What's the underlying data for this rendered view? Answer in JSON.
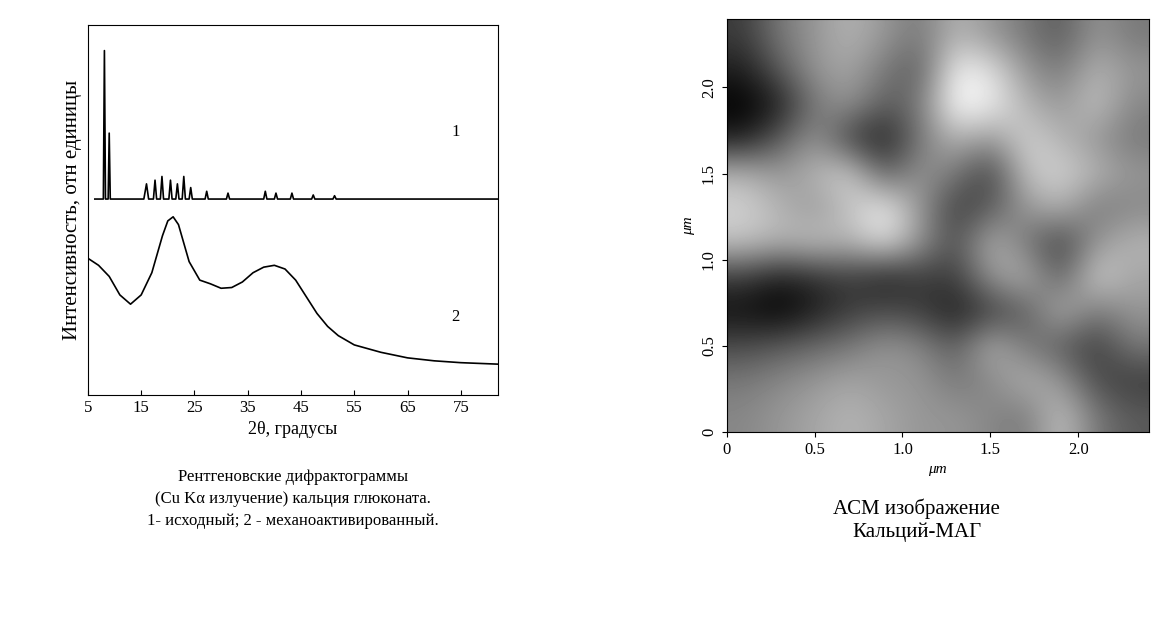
{
  "chart_data": [
    {
      "type": "line",
      "ylabel": "Интенсивность, отн единицы",
      "xlabel": "2θ, градусы",
      "caption": "Рентгеновские дифрактограммы\n(Cu Kα излучение) кальция глюконата.\n1- исходный; 2 - механоактивированный.",
      "xlim": [
        5,
        82
      ],
      "ylim": [
        0,
        100
      ],
      "xticks": [
        5,
        15,
        25,
        35,
        45,
        55,
        65,
        75
      ],
      "yticks": [],
      "tick_labels": "x",
      "series": [
        {
          "name": "1",
          "color": "#000000",
          "x": [
            6.3,
            7.9,
            8.1,
            8.3,
            8.8,
            9.0,
            9.2,
            15.5,
            16,
            16.4,
            17.3,
            17.6,
            17.9,
            18.6,
            18.9,
            19.2,
            20.2,
            20.5,
            20.8,
            21.5,
            21.8,
            22.1,
            22.7,
            23,
            23.3,
            24,
            24.3,
            24.6,
            27,
            27.3,
            27.6,
            31,
            31.3,
            31.6,
            38,
            38.3,
            38.6,
            40,
            40.3,
            40.6,
            43,
            43.3,
            43.6,
            47,
            47.3,
            47.6,
            51,
            51.3,
            51.6,
            82
          ],
          "values": [
            52.9,
            52.9,
            93,
            52.9,
            52.9,
            70.7,
            52.9,
            52.9,
            57,
            52.9,
            52.9,
            58,
            52.9,
            52.9,
            59,
            52.9,
            52.9,
            58,
            52.9,
            52.9,
            57,
            52.9,
            52.9,
            59,
            52.9,
            52.9,
            56,
            52.9,
            52.9,
            55,
            52.9,
            52.9,
            54.5,
            52.9,
            52.9,
            55,
            52.9,
            52.9,
            54.5,
            52.9,
            52.9,
            54.5,
            52.9,
            52.9,
            54,
            52.9,
            52.9,
            53.8,
            52.9,
            52.9
          ]
        },
        {
          "name": "2",
          "color": "#000000",
          "x": [
            5,
            7,
            9,
            11,
            13,
            15,
            17,
            19,
            20,
            21,
            22,
            23,
            24,
            26,
            28,
            30,
            32,
            34,
            36,
            38,
            40,
            42,
            44,
            46,
            48,
            50,
            52,
            55,
            60,
            65,
            70,
            75,
            82
          ],
          "values": [
            36.9,
            35,
            32,
            27,
            24.5,
            27,
            33,
            43,
            47,
            48.1,
            46,
            41,
            36,
            31,
            30,
            28.8,
            29,
            30.5,
            33,
            34.5,
            35,
            34,
            31,
            26.5,
            22,
            18.5,
            16,
            13.5,
            11.5,
            10,
            9.2,
            8.7,
            8.3
          ]
        }
      ],
      "annotations": [
        {
          "text": "1",
          "x": 74,
          "y": 71
        },
        {
          "text": "2",
          "x": 74,
          "y": 21
        }
      ]
    },
    {
      "type": "heatmap",
      "title": "АСМ изображение\nКальций-МАГ",
      "xlabel": "μm",
      "ylabel": "μm",
      "xlim": [
        0,
        2.4
      ],
      "ylim": [
        0,
        2.4
      ],
      "xticks": [
        0,
        0.5,
        {
          "value": 1.0,
          "label": "1.0"
        },
        1.5,
        {
          "value": 2.0,
          "label": "2.0"
        }
      ],
      "yticks": [
        0,
        0.5,
        {
          "value": 1.0,
          "label": "1.0"
        },
        1.5,
        {
          "value": 2.0,
          "label": "2.0"
        }
      ],
      "cells": [
        [
          0.3,
          0.5,
          0.6,
          0.7,
          0.6,
          0.5,
          0.7,
          0.6,
          0.5,
          0.4,
          0.6,
          0.5
        ],
        [
          0.2,
          0.4,
          0.6,
          0.65,
          0.5,
          0.4,
          0.9,
          0.85,
          0.6,
          0.5,
          0.7,
          0.6
        ],
        [
          0.1,
          0.2,
          0.5,
          0.6,
          0.4,
          0.5,
          0.95,
          0.9,
          0.7,
          0.6,
          0.75,
          0.55
        ],
        [
          0.2,
          0.4,
          0.6,
          0.3,
          0.2,
          0.5,
          0.7,
          0.6,
          0.8,
          0.7,
          0.6,
          0.5
        ],
        [
          0.7,
          0.6,
          0.7,
          0.8,
          0.4,
          0.6,
          0.5,
          0.3,
          0.75,
          0.8,
          0.7,
          0.6
        ],
        [
          0.8,
          0.7,
          0.6,
          0.75,
          0.9,
          0.6,
          0.3,
          0.4,
          0.6,
          0.7,
          0.5,
          0.55
        ],
        [
          0.75,
          0.7,
          0.75,
          0.7,
          0.85,
          0.6,
          0.35,
          0.7,
          0.5,
          0.3,
          0.6,
          0.7
        ],
        [
          0.3,
          0.2,
          0.25,
          0.3,
          0.2,
          0.3,
          0.3,
          0.6,
          0.7,
          0.4,
          0.8,
          0.65
        ],
        [
          0.15,
          0.1,
          0.2,
          0.3,
          0.35,
          0.3,
          0.2,
          0.3,
          0.4,
          0.7,
          0.5,
          0.6
        ],
        [
          0.35,
          0.4,
          0.45,
          0.5,
          0.6,
          0.55,
          0.4,
          0.7,
          0.5,
          0.4,
          0.3,
          0.5
        ],
        [
          0.5,
          0.55,
          0.6,
          0.65,
          0.6,
          0.6,
          0.5,
          0.55,
          0.7,
          0.6,
          0.35,
          0.3
        ],
        [
          0.55,
          0.6,
          0.65,
          0.7,
          0.65,
          0.6,
          0.6,
          0.55,
          0.5,
          0.75,
          0.5,
          0.4
        ]
      ]
    }
  ]
}
